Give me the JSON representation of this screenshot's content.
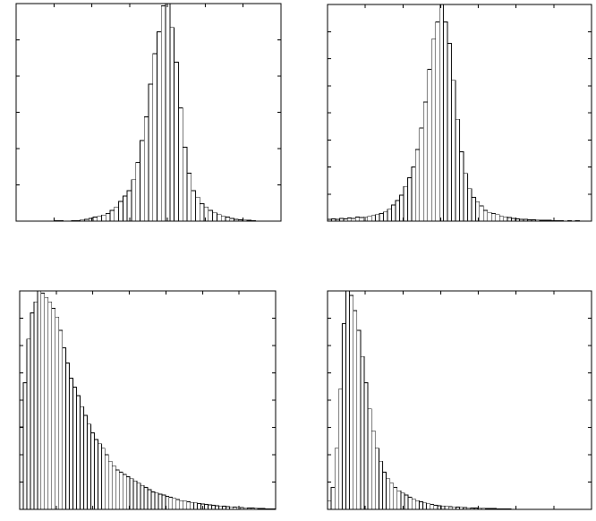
{
  "chart_data": [
    {
      "type": "bar",
      "xlim": [
        0,
        62
      ],
      "ylim": [
        0,
        1.0
      ],
      "grid": false,
      "xticks": 7,
      "yticks": 6,
      "values": [
        0,
        0,
        0,
        0,
        0,
        0,
        0,
        0,
        0,
        0.003,
        0.003,
        0,
        0,
        0.003,
        0.003,
        0.005,
        0.008,
        0.012,
        0.018,
        0.022,
        0.028,
        0.035,
        0.05,
        0.065,
        0.09,
        0.115,
        0.14,
        0.19,
        0.27,
        0.37,
        0.48,
        0.63,
        0.77,
        0.87,
        0.99,
        1.0,
        0.89,
        0.73,
        0.52,
        0.34,
        0.22,
        0.14,
        0.11,
        0.08,
        0.065,
        0.05,
        0.038,
        0.03,
        0.022,
        0.018,
        0.012,
        0.008,
        0.006,
        0.005,
        0.004,
        0.003,
        0,
        0,
        0,
        0,
        0,
        0
      ]
    },
    {
      "type": "bar",
      "xlim": [
        0,
        66
      ],
      "ylim": [
        0,
        1.0
      ],
      "grid": false,
      "xticks": 7,
      "yticks": 8,
      "values": [
        0.008,
        0.01,
        0.008,
        0.012,
        0.01,
        0.014,
        0.012,
        0.018,
        0.016,
        0.02,
        0.022,
        0.026,
        0.03,
        0.035,
        0.042,
        0.055,
        0.075,
        0.095,
        0.12,
        0.16,
        0.2,
        0.25,
        0.33,
        0.43,
        0.55,
        0.7,
        0.84,
        0.92,
        1.0,
        0.92,
        0.82,
        0.65,
        0.47,
        0.32,
        0.22,
        0.15,
        0.11,
        0.09,
        0.07,
        0.05,
        0.04,
        0.035,
        0.03,
        0.022,
        0.02,
        0.016,
        0.012,
        0.01,
        0.008,
        0.008,
        0.006,
        0.006,
        0.005,
        0.004,
        0.004,
        0.004,
        0.003,
        0.003,
        0.003,
        0,
        0.003,
        0,
        0.003,
        0,
        0,
        0
      ]
    },
    {
      "type": "bar",
      "xlim": [
        0,
        72
      ],
      "ylim": [
        0,
        1.0
      ],
      "grid": false,
      "xticks": 7,
      "yticks": 8,
      "values": [
        0.38,
        0.58,
        0.78,
        0.9,
        0.95,
        1.0,
        0.99,
        0.97,
        0.95,
        0.92,
        0.88,
        0.82,
        0.74,
        0.67,
        0.6,
        0.56,
        0.52,
        0.47,
        0.43,
        0.39,
        0.35,
        0.32,
        0.3,
        0.28,
        0.25,
        0.22,
        0.2,
        0.18,
        0.17,
        0.16,
        0.15,
        0.14,
        0.13,
        0.12,
        0.11,
        0.1,
        0.09,
        0.08,
        0.075,
        0.07,
        0.065,
        0.06,
        0.055,
        0.05,
        0.045,
        0.04,
        0.038,
        0.035,
        0.032,
        0.03,
        0.027,
        0.025,
        0.022,
        0.02,
        0.018,
        0.016,
        0.015,
        0.014,
        0.012,
        0.011,
        0.01,
        0.009,
        0.008,
        0.007,
        0.006,
        0.006,
        0.005,
        0.004,
        0.004,
        0.003,
        0.003,
        0.003
      ]
    },
    {
      "type": "bar",
      "xlim": [
        0,
        72
      ],
      "ylim": [
        0,
        1.0
      ],
      "grid": false,
      "xticks": 7,
      "yticks": 8,
      "values": [
        0.04,
        0.1,
        0.28,
        0.55,
        0.85,
        1.0,
        0.98,
        0.91,
        0.82,
        0.7,
        0.58,
        0.46,
        0.36,
        0.28,
        0.22,
        0.17,
        0.14,
        0.12,
        0.1,
        0.085,
        0.075,
        0.065,
        0.055,
        0.048,
        0.04,
        0.035,
        0.03,
        0.026,
        0.022,
        0.019,
        0.017,
        0.015,
        0.013,
        0.012,
        0.011,
        0.01,
        0.009,
        0.008,
        0.007,
        0.006,
        0.006,
        0.005,
        0.005,
        0.004,
        0.004,
        0.004,
        0.003,
        0.003,
        0.003,
        0.003,
        0,
        0,
        0,
        0,
        0,
        0,
        0,
        0,
        0,
        0,
        0,
        0,
        0,
        0,
        0,
        0,
        0,
        0,
        0,
        0,
        0,
        0
      ]
    }
  ]
}
